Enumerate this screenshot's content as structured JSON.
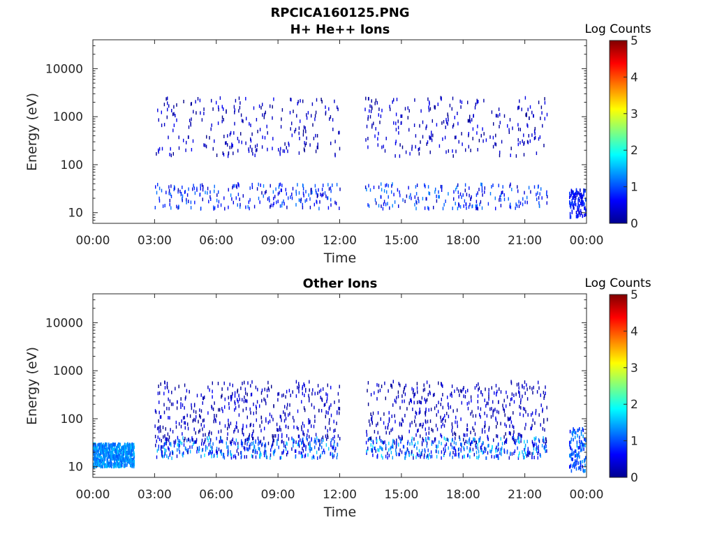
{
  "figure": {
    "filename": "RPCICA160125.PNG"
  },
  "colorbar": {
    "label": "Log Counts",
    "range": [
      0,
      5
    ],
    "ticks": [
      "0",
      "1",
      "2",
      "3",
      "4",
      "5"
    ],
    "colormap": "jet"
  },
  "chart_data": [
    {
      "type": "heatmap",
      "title": "H+ He++ Ions",
      "xlabel": "Time",
      "ylabel": "Energy (eV)",
      "yscale": "log",
      "xlim": [
        "00:00",
        "24:00"
      ],
      "ylim": [
        6,
        40000
      ],
      "xticks": [
        "00:00",
        "03:00",
        "06:00",
        "09:00",
        "12:00",
        "15:00",
        "18:00",
        "21:00",
        "00:00"
      ],
      "yticks": [
        "10",
        "100",
        "1000",
        "10000"
      ],
      "colorbar_label": "Log Counts",
      "clim": [
        0,
        5
      ],
      "description_of_signal": {
        "data_gaps_hours": [
          [
            0.0,
            3.0
          ],
          [
            12.0,
            13.2
          ],
          [
            22.1,
            23.1
          ]
        ],
        "low_energy_band_eV": [
          12,
          40
        ],
        "high_energy_scatter_eV": [
          150,
          2500
        ],
        "peak_log_counts_approx": 1.3,
        "late_burst": {
          "hours": [
            23.15,
            23.95
          ],
          "energy_eV": [
            8,
            30
          ],
          "log_counts": [
            0.3,
            1.0
          ]
        }
      },
      "seed": 4242,
      "n_points": 900
    },
    {
      "type": "heatmap",
      "title": "Other Ions",
      "xlabel": "Time",
      "ylabel": "Energy (eV)",
      "yscale": "log",
      "xlim": [
        "00:00",
        "24:00"
      ],
      "ylim": [
        6,
        40000
      ],
      "xticks": [
        "00:00",
        "03:00",
        "06:00",
        "09:00",
        "12:00",
        "15:00",
        "18:00",
        "21:00",
        "00:00"
      ],
      "yticks": [
        "10",
        "100",
        "1000",
        "10000"
      ],
      "colorbar_label": "Log Counts",
      "clim": [
        0,
        5
      ],
      "description_of_signal": {
        "data_gaps_hours": [
          [
            2.0,
            3.0
          ],
          [
            12.0,
            13.2
          ],
          [
            22.1,
            23.1
          ]
        ],
        "early_band": {
          "hours": [
            0.0,
            2.0
          ],
          "energy_eV": [
            10,
            30
          ],
          "log_counts": [
            1.0,
            1.6
          ]
        },
        "low_energy_band_eV": [
          15,
          40
        ],
        "high_energy_vertical_streaks_eV": [
          30,
          600
        ],
        "peak_log_counts_approx": 1.8,
        "late_burst": {
          "hours": [
            23.15,
            23.95
          ],
          "energy_eV": [
            8,
            70
          ],
          "log_counts": [
            0.6,
            1.5
          ]
        }
      },
      "seed": 9191,
      "n_points": 1600
    }
  ]
}
